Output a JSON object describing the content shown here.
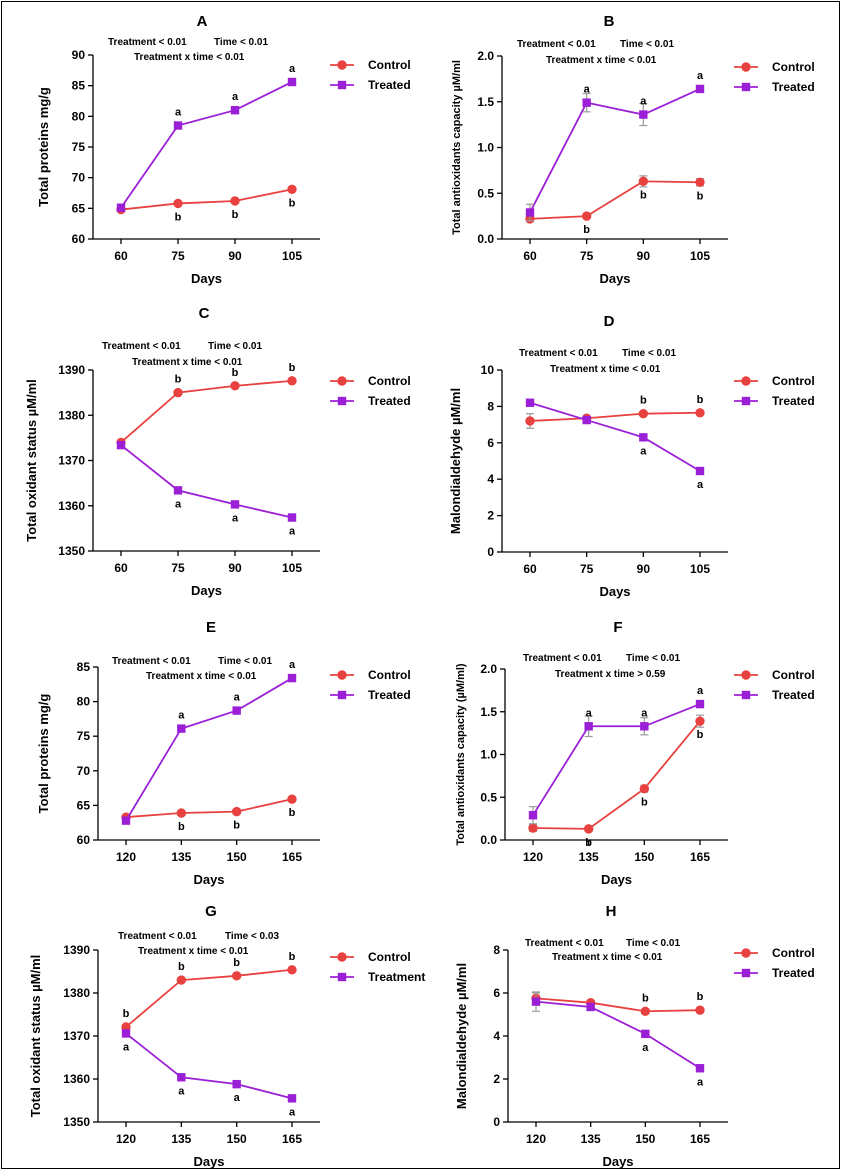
{
  "series_styles": {
    "Control": {
      "color": "#e8413f",
      "marker": "circle"
    },
    "Treated": {
      "color": "#9b1fd6",
      "marker": "square"
    }
  },
  "chart_data": [
    {
      "panel": "A",
      "type": "line",
      "xlabel": "Days",
      "ylabel": "Total proteins mg/g",
      "x": [
        60,
        75,
        90,
        105
      ],
      "ylim": [
        60,
        90
      ],
      "yticks": [
        60,
        65,
        70,
        75,
        80,
        85,
        90
      ],
      "annotations": [
        "Treatment < 0.01",
        "Time < 0.01",
        "Treatment x time < 0.01"
      ],
      "legend": "top-right",
      "series": [
        {
          "name": "Control",
          "values": [
            64.8,
            65.8,
            66.2,
            68.1
          ],
          "err": [
            0.3,
            0.3,
            0.3,
            0.3
          ],
          "letters": [
            "",
            "b",
            "b",
            "b"
          ]
        },
        {
          "name": "Treated",
          "values": [
            65.1,
            78.5,
            81.0,
            85.6
          ],
          "err": [
            0.3,
            0.3,
            0.3,
            0.3
          ],
          "letters": [
            "",
            "a",
            "a",
            "a"
          ]
        }
      ]
    },
    {
      "panel": "B",
      "type": "line",
      "xlabel": "Days",
      "ylabel": "Total antioxidants capacity µM/ml",
      "x": [
        60,
        75,
        90,
        105
      ],
      "ylim": [
        0,
        2.0
      ],
      "yticks": [
        0.0,
        0.5,
        1.0,
        1.5,
        2.0
      ],
      "annotations": [
        "Treatment < 0.01",
        "Time < 0.01",
        "Treatment x time < 0.01"
      ],
      "legend": "top-right",
      "series": [
        {
          "name": "Control",
          "values": [
            0.22,
            0.25,
            0.63,
            0.62
          ],
          "err": [
            0.03,
            0.02,
            0.06,
            0.04
          ],
          "letters": [
            "",
            "b",
            "b",
            "b"
          ]
        },
        {
          "name": "Treated",
          "values": [
            0.29,
            1.49,
            1.36,
            1.64
          ],
          "err": [
            0.09,
            0.1,
            0.12,
            0.03
          ],
          "letters": [
            "",
            "a",
            "a",
            "a"
          ]
        }
      ]
    },
    {
      "panel": "C",
      "type": "line",
      "xlabel": "Days",
      "ylabel": "Total oxidant status µM/ml",
      "x": [
        60,
        75,
        90,
        105
      ],
      "ylim": [
        1350,
        1390
      ],
      "yticks": [
        1350,
        1360,
        1370,
        1380,
        1390
      ],
      "annotations": [
        "Treatment < 0.01",
        "Time < 0.01",
        "Treatment x time < 0.01"
      ],
      "legend": "top-right",
      "series": [
        {
          "name": "Control",
          "values": [
            1374.0,
            1385.0,
            1386.5,
            1387.6
          ],
          "err": [
            0.3,
            0.3,
            0.3,
            0.3
          ],
          "letters": [
            "",
            "b",
            "b",
            "b"
          ]
        },
        {
          "name": "Treated",
          "values": [
            1373.4,
            1363.4,
            1360.3,
            1357.4
          ],
          "err": [
            0.3,
            0.3,
            0.3,
            0.3
          ],
          "letters": [
            "",
            "a",
            "a",
            "a"
          ]
        }
      ]
    },
    {
      "panel": "D",
      "type": "line",
      "xlabel": "Days",
      "ylabel": "Malondialdehyde µM/ml",
      "x": [
        60,
        75,
        90,
        105
      ],
      "ylim": [
        0,
        10
      ],
      "yticks": [
        0,
        2,
        4,
        6,
        8,
        10
      ],
      "annotations": [
        "Treatment < 0.01",
        "Time < 0.01",
        "Treatment x time < 0.01"
      ],
      "legend": "top-right",
      "series": [
        {
          "name": "Control",
          "values": [
            7.2,
            7.35,
            7.6,
            7.65
          ],
          "err": [
            0.4,
            0.1,
            0.1,
            0.1
          ],
          "letters": [
            "",
            "",
            "b",
            "b"
          ]
        },
        {
          "name": "Treated",
          "values": [
            8.2,
            7.25,
            6.3,
            4.45
          ],
          "err": [
            0.1,
            0.1,
            0.1,
            0.1
          ],
          "letters": [
            "",
            "",
            "a",
            "a"
          ]
        }
      ]
    },
    {
      "panel": "E",
      "type": "line",
      "xlabel": "Days",
      "ylabel": "Total proteins mg/g",
      "x": [
        120,
        135,
        150,
        165
      ],
      "ylim": [
        60,
        85
      ],
      "yticks": [
        60,
        65,
        70,
        75,
        80,
        85
      ],
      "annotations": [
        "Treatment < 0.01",
        "Time < 0.01",
        "Treatment x time < 0.01"
      ],
      "legend": "top-right",
      "series": [
        {
          "name": "Control",
          "values": [
            63.3,
            63.9,
            64.1,
            65.9
          ],
          "err": [
            0.3,
            0.3,
            0.3,
            0.3
          ],
          "letters": [
            "",
            "b",
            "b",
            "b"
          ]
        },
        {
          "name": "Treated",
          "values": [
            62.8,
            76.1,
            78.7,
            83.4
          ],
          "err": [
            0.3,
            0.3,
            0.3,
            0.3
          ],
          "letters": [
            "",
            "a",
            "a",
            "a"
          ]
        }
      ]
    },
    {
      "panel": "F",
      "type": "line",
      "xlabel": "Days",
      "ylabel": "Total antioxidants capacity (µM/ml)",
      "x": [
        120,
        135,
        150,
        165
      ],
      "ylim": [
        0,
        2.0
      ],
      "yticks": [
        0.0,
        0.5,
        1.0,
        1.5,
        2.0
      ],
      "annotations": [
        "Treatment < 0.01",
        "Time < 0.01",
        "Treatment x time > 0.59"
      ],
      "legend": "top-right",
      "series": [
        {
          "name": "Control",
          "values": [
            0.14,
            0.13,
            0.6,
            1.39
          ],
          "err": [
            0.04,
            0.03,
            0.04,
            0.07
          ],
          "letters": [
            "",
            "b",
            "b",
            "b"
          ]
        },
        {
          "name": "Treated",
          "values": [
            0.29,
            1.33,
            1.33,
            1.59
          ],
          "err": [
            0.1,
            0.12,
            0.1,
            0.04
          ],
          "letters": [
            "",
            "a",
            "a",
            "a"
          ]
        }
      ]
    },
    {
      "panel": "G",
      "type": "line",
      "xlabel": "Days",
      "ylabel": "Total oxidant status µM/ml",
      "x": [
        120,
        135,
        150,
        165
      ],
      "ylim": [
        1350,
        1390
      ],
      "yticks": [
        1350,
        1360,
        1370,
        1380,
        1390
      ],
      "annotations": [
        "Treatment < 0.01",
        "Time < 0.03",
        "Treatment x time < 0.01"
      ],
      "legend": "top-right",
      "series": [
        {
          "name": "Control",
          "values": [
            1372.1,
            1383.0,
            1384.0,
            1385.4
          ],
          "err": [
            0.3,
            0.3,
            0.3,
            0.3
          ],
          "letters": [
            "b",
            "b",
            "b",
            "b"
          ]
        },
        {
          "name": "Treatment",
          "values": [
            1370.6,
            1360.4,
            1358.8,
            1355.5
          ],
          "err": [
            0.3,
            0.3,
            0.3,
            0.3
          ],
          "letters": [
            "a",
            "a",
            "a",
            "a"
          ]
        }
      ]
    },
    {
      "panel": "H",
      "type": "line",
      "xlabel": "Days",
      "ylabel": "Malondialdehyde µM/ml",
      "x": [
        120,
        135,
        150,
        165
      ],
      "ylim": [
        0,
        8
      ],
      "yticks": [
        0,
        2,
        4,
        6,
        8
      ],
      "annotations": [
        "Treatment < 0.01",
        "Time < 0.01",
        "Treatment x time < 0.01"
      ],
      "legend": "top-right",
      "series": [
        {
          "name": "Control",
          "values": [
            5.75,
            5.55,
            5.15,
            5.2
          ],
          "err": [
            0.25,
            0.1,
            0.1,
            0.1
          ],
          "letters": [
            "",
            "",
            "b",
            "b"
          ]
        },
        {
          "name": "Treated",
          "values": [
            5.6,
            5.35,
            4.1,
            2.5
          ],
          "err": [
            0.45,
            0.1,
            0.1,
            0.1
          ],
          "letters": [
            "",
            "",
            "a",
            "a"
          ]
        }
      ]
    }
  ]
}
